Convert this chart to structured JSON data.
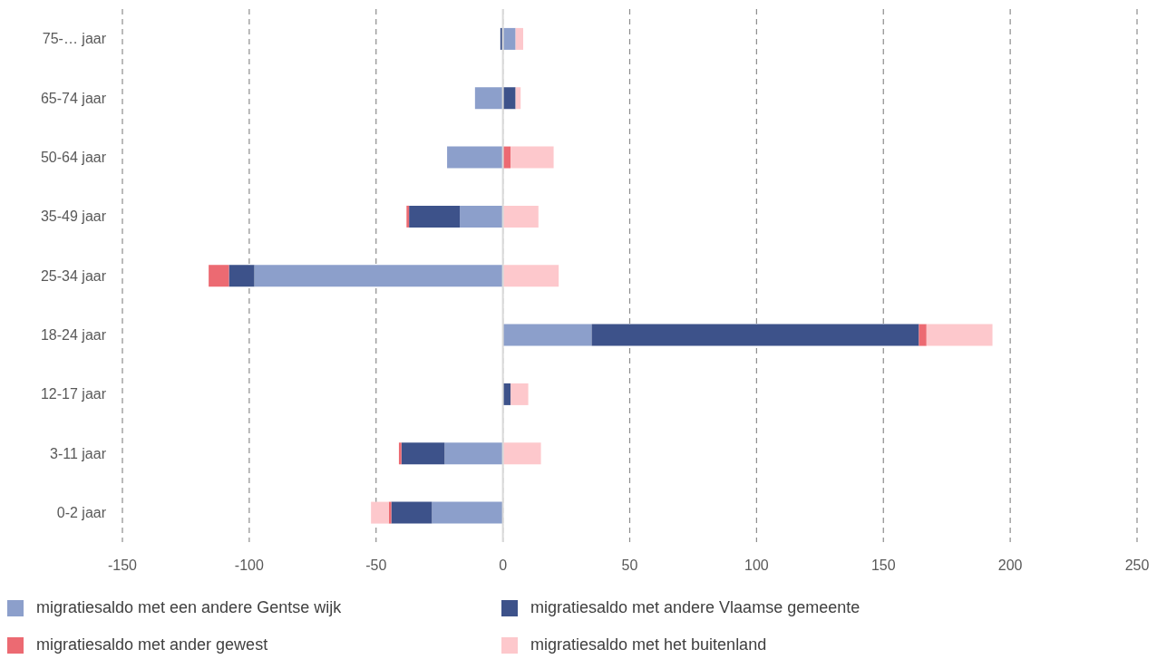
{
  "chart_data": {
    "type": "bar",
    "orientation": "horizontal",
    "stacked": true,
    "categories": [
      "75-… jaar",
      "65-74 jaar",
      "50-64 jaar",
      "35-49 jaar",
      "25-34 jaar",
      "18-24 jaar",
      "12-17 jaar",
      "3-11 jaar",
      "0-2 jaar"
    ],
    "series": [
      {
        "name": "migratiesaldo met een andere Gentse wijk",
        "color": "#8c9fcb",
        "values": [
          5,
          -11,
          -22,
          -17,
          -98,
          35,
          0,
          -23,
          -28
        ]
      },
      {
        "name": "migratiesaldo met andere Vlaamse gemeente",
        "color": "#3d528a",
        "values": [
          -1,
          5,
          0,
          -20,
          -10,
          129,
          3,
          -17,
          -16
        ]
      },
      {
        "name": "migratiesaldo met ander gewest",
        "color": "#ec6a72",
        "values": [
          0,
          0,
          3,
          -1,
          -8,
          3,
          0,
          -1,
          -1
        ]
      },
      {
        "name": "migratiesaldo met het buitenland",
        "color": "#fdc8cc",
        "values": [
          3,
          2,
          17,
          14,
          22,
          26,
          7,
          15,
          -7
        ]
      }
    ],
    "xlim": [
      -150,
      250
    ],
    "xticks": [
      -150,
      -100,
      -50,
      0,
      50,
      100,
      150,
      200,
      250
    ],
    "grid": "x",
    "legend": "bottom",
    "ref_lines": [
      {
        "axis": "x",
        "value": 0,
        "color": "#d9d9d9"
      }
    ]
  }
}
